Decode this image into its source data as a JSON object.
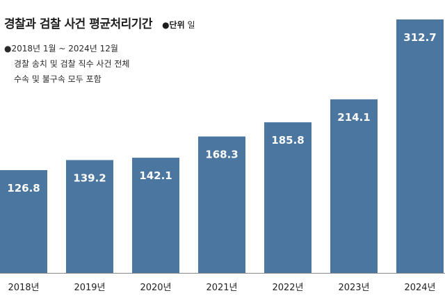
{
  "header": {
    "title": "경찰과 검찰 사건 평균처리기간",
    "unit_label": "●단위",
    "unit_value": "일"
  },
  "notes": [
    "●2018년 1월 ~ 2024년 12월",
    "경찰 송치 및 검찰 직수 사건 전체",
    "수속 및 불구속 모두 포함"
  ],
  "chart_data": {
    "type": "bar",
    "title": "경찰과 검찰 사건 평균처리기간",
    "categories": [
      "2018년",
      "2019년",
      "2020년",
      "2021년",
      "2022년",
      "2023년",
      "2024년"
    ],
    "values": [
      126.8,
      139.2,
      142.1,
      168.3,
      185.8,
      214.1,
      312.7
    ],
    "value_labels": [
      "126.8",
      "139.2",
      "142.1",
      "168.3",
      "185.8",
      "214.1",
      "312.7"
    ],
    "xlabel": "",
    "ylabel": "",
    "ylim": [
      0,
      312.7
    ],
    "grid": false,
    "legend": "none",
    "bar_color": "#4a76a0"
  }
}
